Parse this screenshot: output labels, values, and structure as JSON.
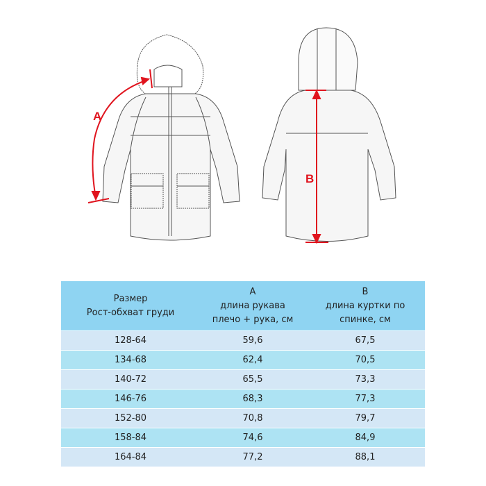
{
  "diagram": {
    "label_a": "A",
    "label_b": "B",
    "measure_color": "#e0141e"
  },
  "table": {
    "header": {
      "col1_line1": "Размер",
      "col1_line2": "Рост-обхват груди",
      "col2_line1": "A",
      "col2_line2": "длина рукава",
      "col2_line3": "плечо + рука, см",
      "col3_line1": "B",
      "col3_line2": "длина куртки по",
      "col3_line3": "спинке, см"
    },
    "rows": [
      {
        "size": "128-64",
        "a": "59,6",
        "b": "67,5"
      },
      {
        "size": "134-68",
        "a": "62,4",
        "b": "70,5"
      },
      {
        "size": "140-72",
        "a": "65,5",
        "b": "73,3"
      },
      {
        "size": "146-76",
        "a": "68,3",
        "b": "77,3"
      },
      {
        "size": "152-80",
        "a": "70,8",
        "b": "79,7"
      },
      {
        "size": "158-84",
        "a": "74,6",
        "b": "84,9"
      },
      {
        "size": "164-84",
        "a": "77,2",
        "b": "88,1"
      }
    ],
    "header_color": "#8fd4f2",
    "row_colors": [
      "#d4e7f6",
      "#ade3f3"
    ]
  }
}
